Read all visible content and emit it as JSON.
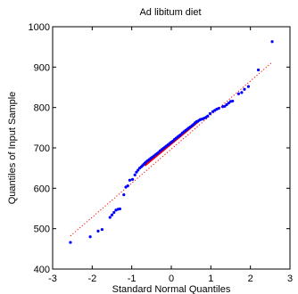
{
  "chart_data": {
    "type": "scatter",
    "title": "Ad libitum diet",
    "xlabel": "Standard Normal Quantiles",
    "ylabel": "Quantiles of Input Sample",
    "xlim": [
      -3,
      3
    ],
    "ylim": [
      400,
      1000
    ],
    "xticks": [
      -3,
      -2,
      -1,
      0,
      1,
      2,
      3
    ],
    "yticks": [
      400,
      500,
      600,
      700,
      800,
      900,
      1000
    ],
    "grid": false,
    "colors": {
      "points": "#0000ff",
      "fit_line": "#ff0000",
      "axes": "#000000"
    },
    "reference_line": {
      "x": [
        -2.55,
        2.55
      ],
      "y": [
        482,
        912
      ]
    },
    "fit_segment": {
      "x": [
        -0.67,
        0.67
      ],
      "y": [
        656,
        764
      ]
    },
    "series": [
      {
        "x": [
          -2.55,
          -2.05,
          -1.85,
          -1.75,
          -1.55,
          -1.5,
          -1.45,
          -1.4,
          -1.35,
          -1.3,
          -1.2,
          -1.15,
          -1.1,
          -1.05,
          -0.98,
          -0.92,
          -0.88,
          -0.84,
          -0.8,
          -0.76,
          -0.73,
          -0.7,
          -0.67,
          -0.64,
          -0.6,
          -0.56,
          -0.52,
          -0.48,
          -0.44,
          -0.4,
          -0.36,
          -0.32,
          -0.28,
          -0.24,
          -0.2,
          -0.16,
          -0.12,
          -0.08,
          -0.04,
          0.0,
          0.04,
          0.08,
          0.12,
          0.16,
          0.2,
          0.24,
          0.28,
          0.32,
          0.36,
          0.4,
          0.44,
          0.48,
          0.52,
          0.56,
          0.6,
          0.64,
          0.67,
          0.7,
          0.73,
          0.76,
          0.8,
          0.84,
          0.88,
          0.92,
          0.98,
          1.05,
          1.1,
          1.15,
          1.2,
          1.3,
          1.35,
          1.4,
          1.45,
          1.5,
          1.55,
          1.7,
          1.78,
          1.85,
          1.95,
          2.2,
          2.55
        ],
        "y": [
          466,
          480,
          494,
          498,
          528,
          534,
          540,
          546,
          548,
          549,
          584,
          603,
          606,
          620,
          622,
          633,
          640,
          645,
          650,
          653,
          656,
          659,
          662,
          665,
          668,
          671,
          674,
          677,
          680,
          683,
          686,
          689,
          693,
          696,
          699,
          702,
          705,
          708,
          711,
          714,
          717,
          721,
          724,
          727,
          730,
          733,
          737,
          740,
          743,
          746,
          749,
          752,
          755,
          758,
          762,
          765,
          766,
          768,
          770,
          771,
          772,
          774,
          776,
          779,
          785,
          790,
          793,
          796,
          798,
          802,
          803,
          807,
          811,
          815,
          816,
          834,
          837,
          845,
          852,
          893,
          963
        ]
      }
    ]
  }
}
